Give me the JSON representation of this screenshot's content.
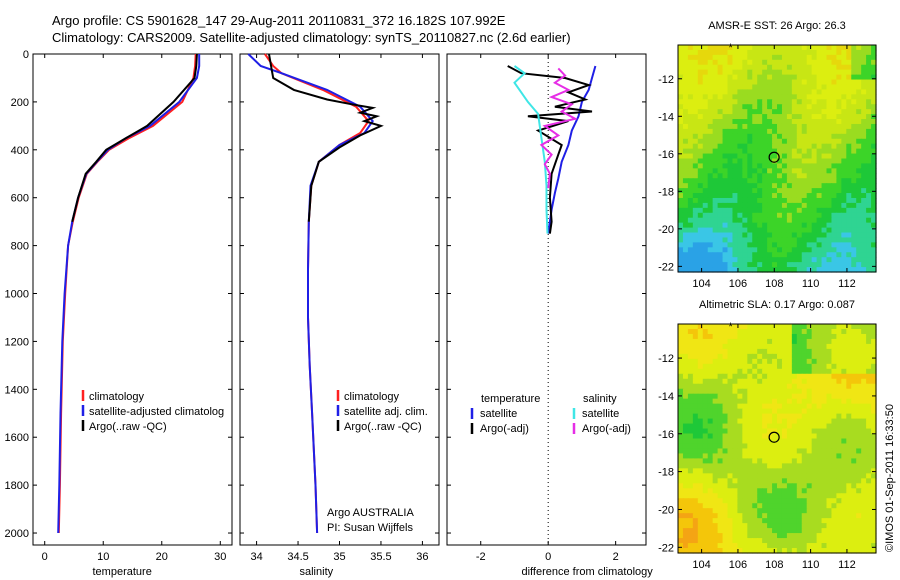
{
  "header": {
    "line1": "Argo profile: CS 5901628_147 29-Aug-2011 20110831_372 16.182S 107.992E",
    "line2": "Climatology: CARS2009. Satellite-adjusted climatology: synTS_20110827.nc (2.6d earlier)"
  },
  "stamp": "©IMOS 01-Sep-2011 16:33:50",
  "colors": {
    "red": "#ff2020",
    "blue": "#1f1fe6",
    "black": "#000000",
    "cyan": "#3fe6e6",
    "magenta": "#e62ee6"
  },
  "chart_data": [
    {
      "type": "line",
      "xlabel": "temperature",
      "xlim": [
        -2,
        32
      ],
      "ylim": [
        0,
        2050
      ],
      "x_ticks": [
        0,
        10,
        20,
        30
      ],
      "y_ticks": [
        0,
        200,
        400,
        600,
        800,
        1000,
        1200,
        1400,
        1600,
        1800,
        2000
      ],
      "legend": [
        "climatology",
        "satellite-adjusted climatolog",
        "Argo(..raw -QC)"
      ],
      "series": [
        {
          "name": "climatology",
          "color": "red",
          "x": [
            25.8,
            25.7,
            25.4,
            23.5,
            18.5,
            14.5,
            11.0,
            9.0,
            7.2,
            5.8,
            4.8,
            4.0,
            3.5,
            3.1,
            2.8,
            2.6,
            2.4
          ],
          "y": [
            0,
            50,
            100,
            200,
            300,
            350,
            400,
            450,
            500,
            600,
            700,
            800,
            1000,
            1200,
            1500,
            1800,
            2000
          ]
        },
        {
          "name": "satellite-adjusted climatolog",
          "color": "blue",
          "x": [
            26.4,
            26.4,
            26.0,
            23.0,
            18.0,
            14.0,
            10.8,
            8.9,
            7.1,
            5.7,
            4.7,
            4.0,
            3.4,
            3.0,
            2.7,
            2.5,
            2.3
          ],
          "y": [
            0,
            50,
            100,
            200,
            300,
            350,
            400,
            450,
            500,
            600,
            700,
            800,
            1000,
            1200,
            1500,
            1800,
            2000
          ]
        },
        {
          "name": "Argo(..raw -QC)",
          "color": "black",
          "x": [
            26.0,
            25.9,
            25.6,
            22.0,
            17.5,
            14.0,
            10.5,
            8.8,
            7.0,
            5.7,
            4.7
          ],
          "y": [
            0,
            50,
            100,
            200,
            300,
            350,
            400,
            450,
            500,
            600,
            700
          ]
        }
      ],
      "annotations": []
    },
    {
      "type": "line",
      "xlabel": "salinity",
      "xlim": [
        33.8,
        36.2
      ],
      "ylim": [
        0,
        2050
      ],
      "x_ticks": [
        34,
        34.5,
        35,
        35.5,
        36
      ],
      "y_ticks": [],
      "legend": [
        "climatology",
        "satellite adj. clim.",
        "Argo(..raw -QC)"
      ],
      "series": [
        {
          "name": "climatology",
          "color": "red",
          "x": [
            34.1,
            34.2,
            34.3,
            34.8,
            35.2,
            35.35,
            35.25,
            35.0,
            34.75,
            34.66,
            34.63,
            34.62,
            34.62,
            34.64,
            34.67,
            34.71,
            34.73
          ],
          "y": [
            0,
            50,
            80,
            150,
            220,
            280,
            330,
            380,
            450,
            550,
            700,
            900,
            1100,
            1300,
            1500,
            1800,
            2000
          ]
        },
        {
          "name": "satellite adj. clim.",
          "color": "blue",
          "x": [
            33.9,
            34.05,
            34.3,
            34.85,
            35.25,
            35.4,
            35.3,
            35.0,
            34.75,
            34.65,
            34.63,
            34.62,
            34.62,
            34.64,
            34.67,
            34.71,
            34.73
          ],
          "y": [
            0,
            50,
            80,
            150,
            220,
            280,
            330,
            380,
            450,
            550,
            700,
            900,
            1100,
            1300,
            1500,
            1800,
            2000
          ]
        },
        {
          "name": "Argo(..raw -QC)",
          "color": "black",
          "x": [
            34.15,
            34.18,
            34.2,
            34.45,
            34.85,
            35.15,
            35.4,
            35.25,
            35.45,
            35.3,
            35.5,
            35.25,
            35.0,
            34.75,
            34.66,
            34.63
          ],
          "y": [
            0,
            60,
            100,
            150,
            190,
            210,
            225,
            245,
            260,
            280,
            300,
            340,
            390,
            450,
            550,
            700
          ]
        }
      ],
      "annotations": [
        "Argo AUSTRALIA",
        "PI: Susan Wijffels"
      ]
    },
    {
      "type": "line",
      "xlabel": "difference from climatology",
      "xlim": [
        -3.0,
        2.9
      ],
      "ylim": [
        0,
        2050
      ],
      "x_ticks": [
        -2,
        0,
        2
      ],
      "y_ticks": [],
      "legend_left_title": "temperature",
      "legend_right_title": "salinity",
      "legend": [
        "satellite",
        "Argo(-adj)",
        "satellite",
        "Argo(-adj)"
      ],
      "series": [
        {
          "name": "satellite",
          "group": "temperature",
          "color": "blue",
          "x": [
            1.4,
            1.3,
            1.2,
            1.0,
            0.9,
            0.7,
            0.6,
            0.4,
            0.3,
            0.2,
            0.1,
            0.05,
            0.0
          ],
          "y": [
            50,
            100,
            150,
            200,
            260,
            320,
            380,
            450,
            520,
            580,
            650,
            700,
            750
          ]
        },
        {
          "name": "Argo(-adj)",
          "group": "temperature",
          "color": "black",
          "x": [
            -1.2,
            -0.8,
            0.5,
            1.2,
            0.6,
            1.1,
            0.2,
            1.3,
            -0.6,
            0.6,
            -0.3,
            0.4,
            0.3,
            0.1,
            0.05,
            0.1,
            0.05
          ],
          "y": [
            50,
            80,
            100,
            130,
            160,
            190,
            220,
            240,
            260,
            280,
            320,
            380,
            420,
            500,
            600,
            700,
            750
          ]
        },
        {
          "name": "satellite",
          "group": "salinity",
          "color": "cyan",
          "x": [
            -1.0,
            -0.7,
            -1.0,
            -0.8,
            -0.6,
            -0.3,
            -0.2,
            -0.1,
            -0.05,
            -0.05,
            -0.02
          ],
          "y": [
            50,
            80,
            120,
            160,
            200,
            250,
            350,
            450,
            550,
            650,
            750
          ]
        },
        {
          "name": "Argo(-adj)",
          "group": "salinity",
          "color": "magenta",
          "x": [
            0.3,
            0.5,
            0.2,
            0.6,
            0.1,
            0.7,
            0.4,
            0.8,
            -0.1,
            0.3,
            -0.2,
            0.1,
            -0.1,
            0.05,
            0.0
          ],
          "y": [
            60,
            90,
            120,
            150,
            180,
            210,
            240,
            270,
            300,
            340,
            380,
            420,
            460,
            500,
            560
          ]
        }
      ],
      "annotations": []
    },
    {
      "type": "heatmap",
      "title": "AMSR-E SST: 26 Argo: 26.3",
      "xlim": [
        102.7,
        113.6
      ],
      "ylim": [
        -22.3,
        -10.2
      ],
      "x_ticks": [
        104,
        106,
        108,
        110,
        112
      ],
      "y_ticks": [
        -12,
        -14,
        -16,
        -18,
        -20,
        -22
      ],
      "argo_position": {
        "lon": 107.992,
        "lat": -16.182
      },
      "palette": [
        "#2aa2e6",
        "#3ac6e6",
        "#2fd492",
        "#1ec838",
        "#3cd428",
        "#9adc20",
        "#c8e614",
        "#dcee10",
        "#e6d80c"
      ]
    },
    {
      "type": "heatmap",
      "title": "Altimetric SLA: 0.17 Argo: 0.087",
      "xlim": [
        102.7,
        113.6
      ],
      "ylim": [
        -22.3,
        -10.2
      ],
      "x_ticks": [
        104,
        106,
        108,
        110,
        112
      ],
      "y_ticks": [
        -12,
        -14,
        -16,
        -18,
        -20,
        -22
      ],
      "argo_position": {
        "lon": 107.992,
        "lat": -16.182
      },
      "palette": [
        "#1ec838",
        "#4fd42c",
        "#a8dc20",
        "#dcee10",
        "#f0e614",
        "#f4c60a",
        "#f4a414"
      ]
    }
  ]
}
